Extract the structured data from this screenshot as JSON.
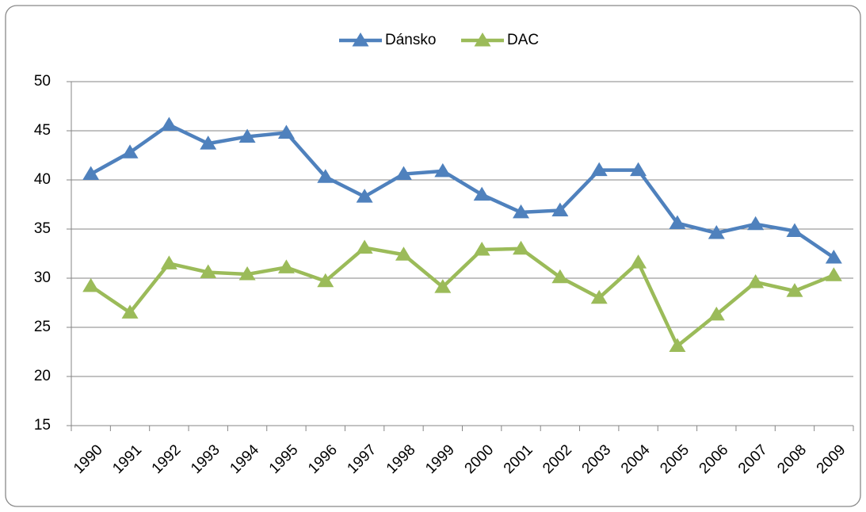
{
  "chart_data": {
    "type": "line",
    "categories": [
      "1990",
      "1991",
      "1992",
      "1993",
      "1994",
      "1995",
      "1996",
      "1997",
      "1998",
      "1999",
      "2000",
      "2001",
      "2002",
      "2003",
      "2004",
      "2005",
      "2006",
      "2007",
      "2008",
      "2009"
    ],
    "series": [
      {
        "name": "Dánsko",
        "color": "#4f81bd",
        "values": [
          40.6,
          42.8,
          45.6,
          43.7,
          44.4,
          44.8,
          40.3,
          38.3,
          40.6,
          40.9,
          38.5,
          36.7,
          36.9,
          41.0,
          41.0,
          35.6,
          34.6,
          35.5,
          34.8,
          32.1
        ]
      },
      {
        "name": "DAC",
        "color": "#9bbb59",
        "values": [
          29.2,
          26.5,
          31.5,
          30.6,
          30.4,
          31.1,
          29.7,
          33.1,
          32.4,
          29.1,
          32.9,
          33.0,
          30.1,
          28.0,
          31.6,
          23.1,
          26.3,
          29.6,
          28.7,
          30.3
        ]
      }
    ],
    "ylim": [
      15,
      50
    ],
    "yticks": [
      15,
      20,
      25,
      30,
      35,
      40,
      45,
      50
    ],
    "grid": true,
    "legend": "top"
  }
}
